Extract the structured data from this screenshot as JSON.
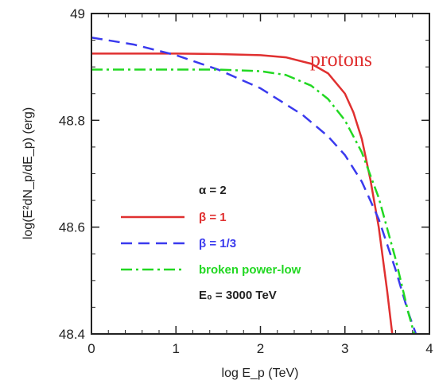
{
  "chart_data": {
    "type": "line",
    "title": "",
    "xlabel": "log E_p (TeV)",
    "ylabel": "log(E²dN_p/dE_p) (erg)",
    "xlim": [
      0,
      4
    ],
    "ylim": [
      48.4,
      49.0
    ],
    "x_ticks": [
      "0",
      "1",
      "2",
      "3",
      "4"
    ],
    "y_ticks": [
      "48.4",
      "48.6",
      "48.8",
      "49"
    ],
    "annotation": "protons",
    "legend_params": [
      "α = 2",
      "E₀ = 3000 TeV"
    ],
    "series": [
      {
        "name": "β = 1",
        "color": "#e03030",
        "style": "solid",
        "x": [
          0,
          0.5,
          1.0,
          1.5,
          2.0,
          2.3,
          2.6,
          2.8,
          3.0,
          3.1,
          3.2,
          3.3,
          3.4,
          3.5,
          3.56
        ],
        "y": [
          48.925,
          48.925,
          48.925,
          48.924,
          48.922,
          48.918,
          48.906,
          48.888,
          48.85,
          48.815,
          48.765,
          48.69,
          48.6,
          48.48,
          48.4
        ]
      },
      {
        "name": "β = 1/3",
        "color": "#3a3aee",
        "style": "dashed",
        "x": [
          0,
          0.5,
          1.0,
          1.5,
          2.0,
          2.5,
          2.8,
          3.0,
          3.2,
          3.4,
          3.6,
          3.75,
          3.84
        ],
        "y": [
          48.955,
          48.942,
          48.922,
          48.895,
          48.86,
          48.81,
          48.77,
          48.735,
          48.685,
          48.615,
          48.52,
          48.44,
          48.4
        ]
      },
      {
        "name": "broken power-low",
        "color": "#22d822",
        "style": "dashdot",
        "x": [
          0,
          0.5,
          1.0,
          1.5,
          2.0,
          2.3,
          2.6,
          2.8,
          3.0,
          3.2,
          3.4,
          3.6,
          3.75,
          3.82
        ],
        "y": [
          48.895,
          48.895,
          48.895,
          48.895,
          48.892,
          48.885,
          48.865,
          48.84,
          48.8,
          48.74,
          48.655,
          48.54,
          48.44,
          48.4
        ]
      }
    ]
  }
}
